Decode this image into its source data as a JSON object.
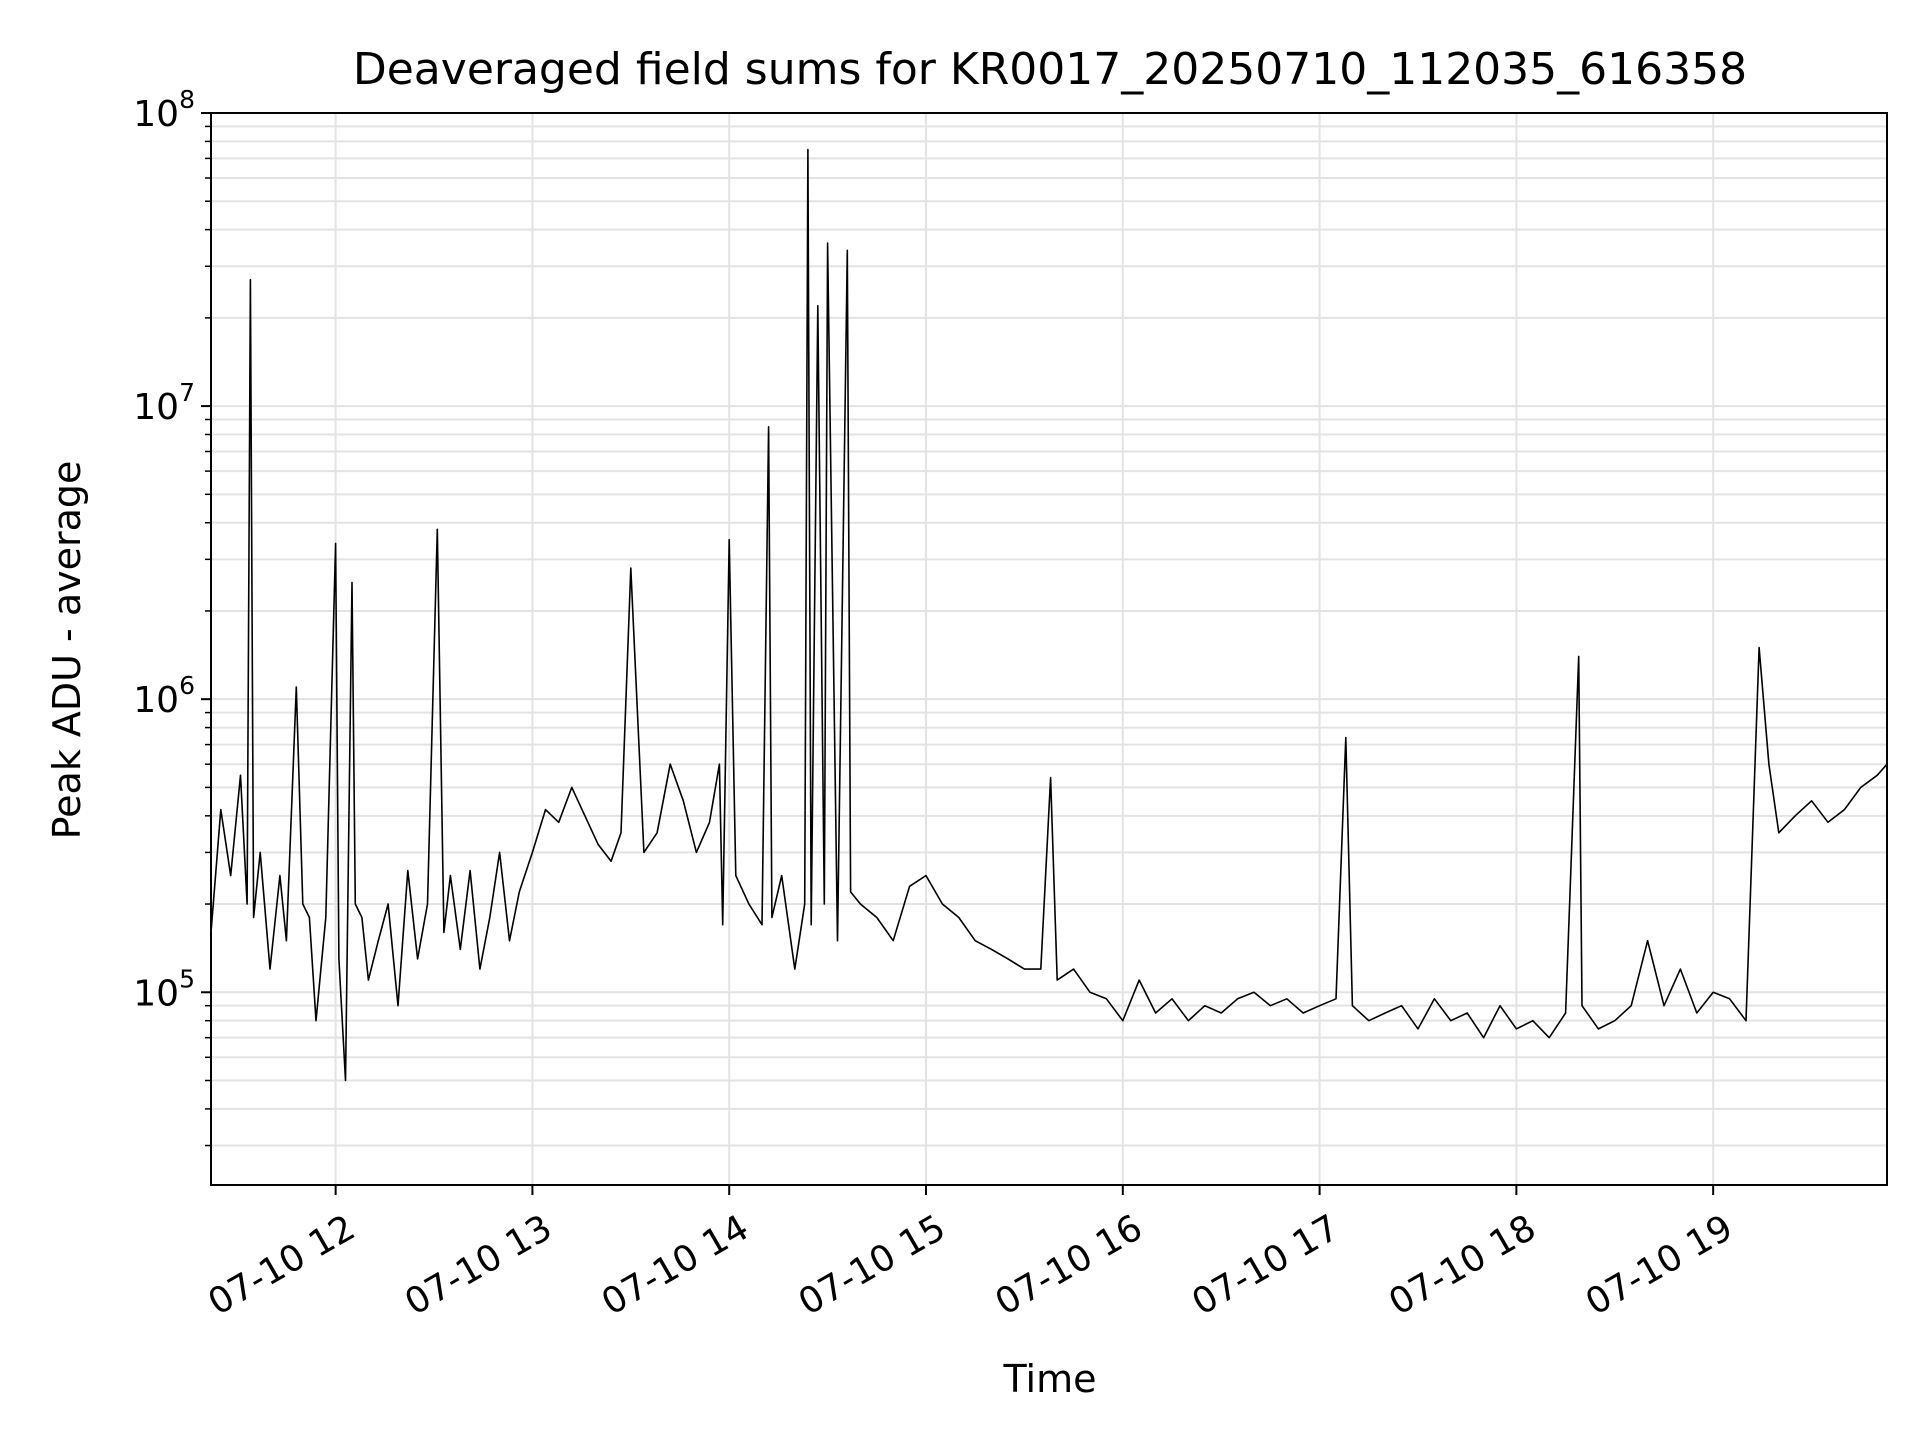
{
  "chart_data": {
    "type": "line",
    "title": "Deaveraged field sums for KR0017_20250710_112035_616358",
    "xlabel": "Time",
    "ylabel": "Peak ADU - average",
    "yscale": "log",
    "ylim": [
      22000,
      100000000
    ],
    "xlim": [
      "2025-07-10 11:22",
      "2025-07-10 19:53"
    ],
    "grid": true,
    "line_color": "#000000",
    "grid_color": "#e3e3e3",
    "x_ticks": [
      {
        "value": "2025-07-10 12:00",
        "label": "07-10 12"
      },
      {
        "value": "2025-07-10 13:00",
        "label": "07-10 13"
      },
      {
        "value": "2025-07-10 14:00",
        "label": "07-10 14"
      },
      {
        "value": "2025-07-10 15:00",
        "label": "07-10 15"
      },
      {
        "value": "2025-07-10 16:00",
        "label": "07-10 16"
      },
      {
        "value": "2025-07-10 17:00",
        "label": "07-10 17"
      },
      {
        "value": "2025-07-10 18:00",
        "label": "07-10 18"
      },
      {
        "value": "2025-07-10 19:00",
        "label": "07-10 19"
      }
    ],
    "y_ticks": [
      {
        "value": 100000,
        "base": "10",
        "exp": "5"
      },
      {
        "value": 1000000,
        "base": "10",
        "exp": "6"
      },
      {
        "value": 10000000,
        "base": "10",
        "exp": "7"
      },
      {
        "value": 100000000,
        "base": "10",
        "exp": "8"
      }
    ],
    "series": [
      {
        "x": [
          "2025-07-10 11:22",
          "2025-07-10 11:25",
          "2025-07-10 11:28",
          "2025-07-10 11:31",
          "2025-07-10 11:33",
          "2025-07-10 11:34",
          "2025-07-10 11:35",
          "2025-07-10 11:37",
          "2025-07-10 11:40",
          "2025-07-10 11:43",
          "2025-07-10 11:45",
          "2025-07-10 11:48",
          "2025-07-10 11:50",
          "2025-07-10 11:52",
          "2025-07-10 11:54",
          "2025-07-10 11:57",
          "2025-07-10 12:00",
          "2025-07-10 12:01",
          "2025-07-10 12:03",
          "2025-07-10 12:05",
          "2025-07-10 12:06",
          "2025-07-10 12:08",
          "2025-07-10 12:10",
          "2025-07-10 12:13",
          "2025-07-10 12:16",
          "2025-07-10 12:19",
          "2025-07-10 12:22",
          "2025-07-10 12:25",
          "2025-07-10 12:28",
          "2025-07-10 12:31",
          "2025-07-10 12:33",
          "2025-07-10 12:35",
          "2025-07-10 12:38",
          "2025-07-10 12:41",
          "2025-07-10 12:44",
          "2025-07-10 12:47",
          "2025-07-10 12:50",
          "2025-07-10 12:53",
          "2025-07-10 12:56",
          "2025-07-10 13:00",
          "2025-07-10 13:04",
          "2025-07-10 13:08",
          "2025-07-10 13:12",
          "2025-07-10 13:16",
          "2025-07-10 13:20",
          "2025-07-10 13:24",
          "2025-07-10 13:27",
          "2025-07-10 13:30",
          "2025-07-10 13:34",
          "2025-07-10 13:38",
          "2025-07-10 13:42",
          "2025-07-10 13:46",
          "2025-07-10 13:50",
          "2025-07-10 13:54",
          "2025-07-10 13:57",
          "2025-07-10 13:58",
          "2025-07-10 14:00",
          "2025-07-10 14:02",
          "2025-07-10 14:06",
          "2025-07-10 14:10",
          "2025-07-10 14:12",
          "2025-07-10 14:13",
          "2025-07-10 14:16",
          "2025-07-10 14:20",
          "2025-07-10 14:23",
          "2025-07-10 14:24",
          "2025-07-10 14:25",
          "2025-07-10 14:27",
          "2025-07-10 14:29",
          "2025-07-10 14:30",
          "2025-07-10 14:33",
          "2025-07-10 14:36",
          "2025-07-10 14:37",
          "2025-07-10 14:40",
          "2025-07-10 14:45",
          "2025-07-10 14:50",
          "2025-07-10 14:55",
          "2025-07-10 15:00",
          "2025-07-10 15:05",
          "2025-07-10 15:10",
          "2025-07-10 15:15",
          "2025-07-10 15:20",
          "2025-07-10 15:25",
          "2025-07-10 15:30",
          "2025-07-10 15:35",
          "2025-07-10 15:38",
          "2025-07-10 15:40",
          "2025-07-10 15:45",
          "2025-07-10 15:50",
          "2025-07-10 15:55",
          "2025-07-10 16:00",
          "2025-07-10 16:05",
          "2025-07-10 16:10",
          "2025-07-10 16:15",
          "2025-07-10 16:20",
          "2025-07-10 16:25",
          "2025-07-10 16:30",
          "2025-07-10 16:35",
          "2025-07-10 16:40",
          "2025-07-10 16:45",
          "2025-07-10 16:50",
          "2025-07-10 16:55",
          "2025-07-10 17:00",
          "2025-07-10 17:05",
          "2025-07-10 17:08",
          "2025-07-10 17:10",
          "2025-07-10 17:15",
          "2025-07-10 17:20",
          "2025-07-10 17:25",
          "2025-07-10 17:30",
          "2025-07-10 17:35",
          "2025-07-10 17:40",
          "2025-07-10 17:45",
          "2025-07-10 17:50",
          "2025-07-10 17:55",
          "2025-07-10 18:00",
          "2025-07-10 18:05",
          "2025-07-10 18:10",
          "2025-07-10 18:15",
          "2025-07-10 18:19",
          "2025-07-10 18:20",
          "2025-07-10 18:25",
          "2025-07-10 18:30",
          "2025-07-10 18:35",
          "2025-07-10 18:40",
          "2025-07-10 18:45",
          "2025-07-10 18:50",
          "2025-07-10 18:55",
          "2025-07-10 19:00",
          "2025-07-10 19:05",
          "2025-07-10 19:10",
          "2025-07-10 19:14",
          "2025-07-10 19:17",
          "2025-07-10 19:20",
          "2025-07-10 19:25",
          "2025-07-10 19:30",
          "2025-07-10 19:35",
          "2025-07-10 19:40",
          "2025-07-10 19:45",
          "2025-07-10 19:50",
          "2025-07-10 19:53"
        ],
        "y": [
          160000,
          420000,
          250000,
          550000,
          200000,
          27000000,
          180000,
          300000,
          120000,
          250000,
          150000,
          1100000,
          200000,
          180000,
          80000,
          180000,
          3400000,
          130000,
          50000,
          2500000,
          200000,
          180000,
          110000,
          150000,
          200000,
          90000,
          260000,
          130000,
          200000,
          3800000,
          160000,
          250000,
          140000,
          260000,
          120000,
          180000,
          300000,
          150000,
          220000,
          300000,
          420000,
          380000,
          500000,
          400000,
          320000,
          280000,
          350000,
          2800000,
          300000,
          350000,
          600000,
          450000,
          300000,
          380000,
          600000,
          170000,
          3500000,
          250000,
          200000,
          170000,
          8500000,
          180000,
          250000,
          120000,
          200000,
          75000000,
          170000,
          22000000,
          200000,
          36000000,
          150000,
          34000000,
          220000,
          200000,
          180000,
          150000,
          230000,
          250000,
          200000,
          180000,
          150000,
          140000,
          130000,
          120000,
          120000,
          540000,
          110000,
          120000,
          100000,
          95000,
          80000,
          110000,
          85000,
          95000,
          80000,
          90000,
          85000,
          95000,
          100000,
          90000,
          95000,
          85000,
          90000,
          95000,
          740000,
          90000,
          80000,
          85000,
          90000,
          75000,
          95000,
          80000,
          85000,
          70000,
          90000,
          75000,
          80000,
          70000,
          85000,
          1400000,
          90000,
          75000,
          80000,
          90000,
          150000,
          90000,
          120000,
          85000,
          100000,
          95000,
          80000,
          1500000,
          600000,
          350000,
          400000,
          450000,
          380000,
          420000,
          500000,
          550000,
          600000
        ]
      }
    ]
  }
}
